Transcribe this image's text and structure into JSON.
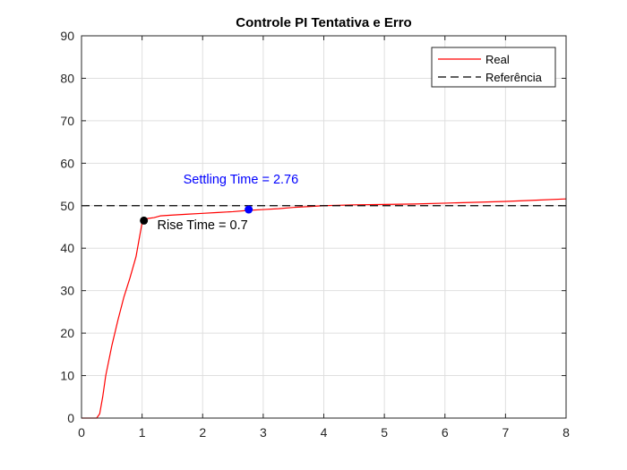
{
  "chart_data": {
    "type": "line",
    "title": "Controle PI Tentativa e Erro",
    "xlabel": "",
    "ylabel": "",
    "xlim": [
      0,
      8
    ],
    "ylim": [
      0,
      90
    ],
    "xticks": [
      0,
      1,
      2,
      3,
      4,
      5,
      6,
      7,
      8
    ],
    "yticks": [
      0,
      10,
      20,
      30,
      40,
      50,
      60,
      70,
      80,
      90
    ],
    "grid": true,
    "legend_position": "top-right",
    "series": [
      {
        "name": "Real",
        "color": "#ff0000",
        "style": "solid",
        "x": [
          0,
          0.25,
          0.3,
          0.35,
          0.4,
          0.5,
          0.6,
          0.7,
          0.8,
          0.9,
          0.95,
          1.0,
          1.03,
          1.1,
          1.2,
          1.3,
          1.5,
          1.75,
          2.0,
          2.25,
          2.5,
          2.75,
          3.0,
          3.25,
          3.5,
          3.75,
          4.0,
          4.5,
          5.0,
          5.5,
          6.0,
          6.5,
          7.0,
          7.5,
          8.0
        ],
        "y": [
          0,
          0,
          1,
          5,
          10,
          17,
          23,
          28.5,
          33,
          38,
          42,
          46,
          46.8,
          47,
          47.2,
          47.6,
          47.8,
          48.0,
          48.2,
          48.4,
          48.6,
          48.9,
          49.1,
          49.3,
          49.6,
          49.8,
          50.0,
          50.2,
          50.3,
          50.4,
          50.6,
          50.8,
          51.0,
          51.3,
          51.6
        ]
      },
      {
        "name": "Referência",
        "color": "#000000",
        "style": "dashed",
        "x": [
          0,
          8
        ],
        "y": [
          50,
          50
        ]
      }
    ],
    "markers": [
      {
        "label": "rise-point",
        "x": 1.03,
        "y": 46.5,
        "color": "#000000"
      },
      {
        "label": "settling-point",
        "x": 2.76,
        "y": 49.1,
        "color": "#0000ff"
      }
    ],
    "annotations": [
      {
        "text": "Rise Time = 0.7",
        "x": 1.25,
        "y": 44.5,
        "color": "#000000"
      },
      {
        "text": "Settling Time = 2.76",
        "x": 1.68,
        "y": 55.2,
        "color": "#0000ff"
      }
    ]
  }
}
